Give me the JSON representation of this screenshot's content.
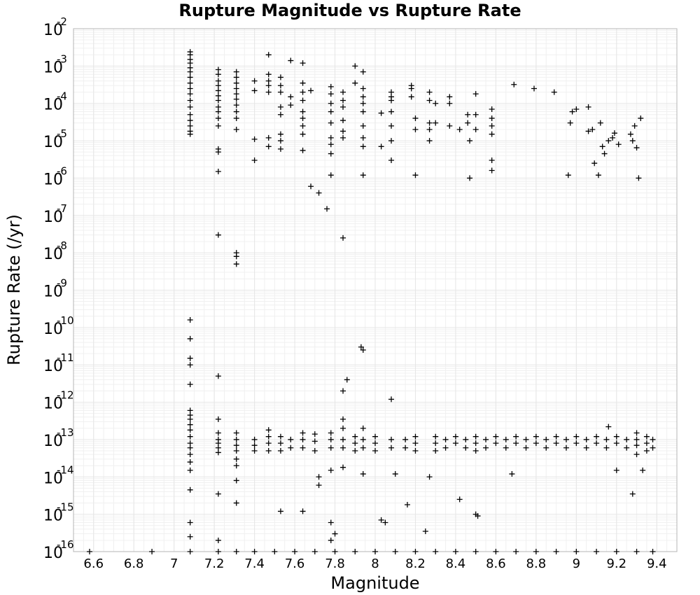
{
  "chart_data": {
    "type": "scatter",
    "title": "Rupture Magnitude vs Rupture Rate",
    "xlabel": "Magnitude",
    "ylabel": "Rupture Rate (/yr)",
    "xlim": [
      6.5,
      9.5
    ],
    "ylim": [
      1e-16,
      0.01
    ],
    "yscale": "log",
    "grid": true,
    "marker": "plus",
    "marker_color": "#000000",
    "x_ticks": [
      "6.6",
      "6.8",
      "7",
      "7.2",
      "7.4",
      "7.6",
      "7.8",
      "8",
      "8.2",
      "8.4",
      "8.6",
      "8.8",
      "9",
      "9.2",
      "9.4"
    ],
    "x_tick_values": [
      6.6,
      6.8,
      7.0,
      7.2,
      7.4,
      7.6,
      7.8,
      8.0,
      8.2,
      8.4,
      8.6,
      8.8,
      9.0,
      9.2,
      9.4
    ],
    "y_ticks": [
      {
        "base": "10",
        "exp": "-2"
      },
      {
        "base": "10",
        "exp": "-3"
      },
      {
        "base": "10",
        "exp": "-4"
      },
      {
        "base": "10",
        "exp": "-5"
      },
      {
        "base": "10",
        "exp": "-6"
      },
      {
        "base": "10",
        "exp": "-7"
      },
      {
        "base": "10",
        "exp": "-8"
      },
      {
        "base": "10",
        "exp": "-9"
      },
      {
        "base": "10",
        "exp": "-10"
      },
      {
        "base": "10",
        "exp": "-11"
      },
      {
        "base": "10",
        "exp": "-12"
      },
      {
        "base": "10",
        "exp": "-13"
      },
      {
        "base": "10",
        "exp": "-14"
      },
      {
        "base": "10",
        "exp": "-15"
      },
      {
        "base": "10",
        "exp": "-16"
      }
    ],
    "y_tick_values": [
      0.01,
      0.001,
      0.0001,
      1e-05,
      1e-06,
      1e-07,
      1e-08,
      1e-09,
      1e-10,
      1e-11,
      1e-12,
      1e-13,
      1e-14,
      1e-15,
      1e-16
    ],
    "points": [
      [
        6.58,
        1e-16
      ],
      [
        6.89,
        1e-16
      ],
      [
        7.08,
        1e-16
      ],
      [
        7.22,
        1e-16
      ],
      [
        7.31,
        1e-16
      ],
      [
        7.4,
        1e-16
      ],
      [
        7.5,
        1e-16
      ],
      [
        7.6,
        1e-16
      ],
      [
        7.7,
        1e-16
      ],
      [
        7.8,
        1e-16
      ],
      [
        7.9,
        1e-16
      ],
      [
        8.0,
        1e-16
      ],
      [
        8.1,
        1e-16
      ],
      [
        8.2,
        1e-16
      ],
      [
        8.3,
        1e-16
      ],
      [
        8.4,
        1e-16
      ],
      [
        8.5,
        1e-16
      ],
      [
        8.6,
        1e-16
      ],
      [
        8.7,
        1e-16
      ],
      [
        8.8,
        1e-16
      ],
      [
        8.9,
        1e-16
      ],
      [
        9.0,
        1e-16
      ],
      [
        9.1,
        1e-16
      ],
      [
        9.2,
        1e-16
      ],
      [
        9.3,
        1e-16
      ],
      [
        9.38,
        1e-16
      ],
      [
        7.08,
        0.0024
      ],
      [
        7.08,
        0.002
      ],
      [
        7.08,
        0.0015
      ],
      [
        7.08,
        0.0012
      ],
      [
        7.08,
        0.0009
      ],
      [
        7.08,
        0.0007
      ],
      [
        7.08,
        0.0005
      ],
      [
        7.08,
        0.00035
      ],
      [
        7.08,
        0.00025
      ],
      [
        7.08,
        0.00018
      ],
      [
        7.08,
        0.00012
      ],
      [
        7.08,
        8e-05
      ],
      [
        7.08,
        5e-05
      ],
      [
        7.08,
        3.5e-05
      ],
      [
        7.08,
        2.5e-05
      ],
      [
        7.08,
        1.8e-05
      ],
      [
        7.08,
        1.5e-05
      ],
      [
        7.22,
        0.0008
      ],
      [
        7.22,
        0.0006
      ],
      [
        7.22,
        0.0004
      ],
      [
        7.22,
        0.0003
      ],
      [
        7.22,
        0.00022
      ],
      [
        7.22,
        0.00016
      ],
      [
        7.22,
        0.00012
      ],
      [
        7.22,
        8e-05
      ],
      [
        7.22,
        6e-05
      ],
      [
        7.22,
        4e-05
      ],
      [
        7.22,
        2.5e-05
      ],
      [
        7.22,
        6e-06
      ],
      [
        7.22,
        5e-06
      ],
      [
        7.22,
        1.5e-06
      ],
      [
        7.22,
        3e-08
      ],
      [
        7.31,
        0.0007
      ],
      [
        7.31,
        0.0005
      ],
      [
        7.31,
        0.00035
      ],
      [
        7.31,
        0.00025
      ],
      [
        7.31,
        0.00018
      ],
      [
        7.31,
        0.00013
      ],
      [
        7.31,
        9e-05
      ],
      [
        7.31,
        6e-05
      ],
      [
        7.31,
        4e-05
      ],
      [
        7.31,
        2e-05
      ],
      [
        7.31,
        1e-08
      ],
      [
        7.31,
        8e-09
      ],
      [
        7.31,
        5e-09
      ],
      [
        7.4,
        0.0004
      ],
      [
        7.4,
        0.00022
      ],
      [
        7.4,
        1.1e-05
      ],
      [
        7.4,
        3e-06
      ],
      [
        7.47,
        0.002
      ],
      [
        7.47,
        0.0006
      ],
      [
        7.47,
        0.0004
      ],
      [
        7.47,
        0.0003
      ],
      [
        7.47,
        0.0002
      ],
      [
        7.47,
        1.2e-05
      ],
      [
        7.47,
        7e-06
      ],
      [
        7.53,
        0.0005
      ],
      [
        7.53,
        0.0003
      ],
      [
        7.53,
        0.0002
      ],
      [
        7.53,
        8e-05
      ],
      [
        7.53,
        5e-05
      ],
      [
        7.53,
        1.5e-05
      ],
      [
        7.53,
        1e-05
      ],
      [
        7.53,
        6e-06
      ],
      [
        7.58,
        0.0014
      ],
      [
        7.58,
        0.00015
      ],
      [
        7.58,
        9e-05
      ],
      [
        7.64,
        0.0012
      ],
      [
        7.64,
        0.00035
      ],
      [
        7.64,
        0.0002
      ],
      [
        7.64,
        0.00012
      ],
      [
        7.64,
        6e-05
      ],
      [
        7.64,
        4e-05
      ],
      [
        7.64,
        2.5e-05
      ],
      [
        7.64,
        1.5e-05
      ],
      [
        7.64,
        5.5e-06
      ],
      [
        7.68,
        0.00022
      ],
      [
        7.68,
        6e-07
      ],
      [
        7.72,
        4e-07
      ],
      [
        7.76,
        1.5e-07
      ],
      [
        7.78,
        0.00028
      ],
      [
        7.78,
        0.00018
      ],
      [
        7.78,
        0.0001
      ],
      [
        7.78,
        6e-05
      ],
      [
        7.78,
        3e-05
      ],
      [
        7.78,
        1.2e-05
      ],
      [
        7.78,
        8e-06
      ],
      [
        7.78,
        4.5e-06
      ],
      [
        7.78,
        1.2e-06
      ],
      [
        7.84,
        0.0002
      ],
      [
        7.84,
        0.00012
      ],
      [
        7.84,
        8e-05
      ],
      [
        7.84,
        3.5e-05
      ],
      [
        7.84,
        1.8e-05
      ],
      [
        7.84,
        1.2e-05
      ],
      [
        7.84,
        2.5e-08
      ],
      [
        7.9,
        0.001
      ],
      [
        7.9,
        0.00035
      ],
      [
        7.94,
        0.0007
      ],
      [
        7.94,
        0.00025
      ],
      [
        7.94,
        0.00015
      ],
      [
        7.94,
        0.0001
      ],
      [
        7.94,
        6e-05
      ],
      [
        7.94,
        2.5e-05
      ],
      [
        7.94,
        1.2e-05
      ],
      [
        7.94,
        7e-06
      ],
      [
        7.94,
        1.2e-06
      ],
      [
        8.03,
        5.5e-05
      ],
      [
        8.03,
        7e-06
      ],
      [
        8.08,
        0.0002
      ],
      [
        8.08,
        0.00015
      ],
      [
        8.08,
        0.00012
      ],
      [
        8.08,
        6e-05
      ],
      [
        8.08,
        2.5e-05
      ],
      [
        8.08,
        1e-05
      ],
      [
        8.08,
        3e-06
      ],
      [
        8.18,
        0.0003
      ],
      [
        8.18,
        0.00025
      ],
      [
        8.18,
        0.00015
      ],
      [
        8.2,
        4e-05
      ],
      [
        8.2,
        2e-05
      ],
      [
        8.2,
        1.2e-06
      ],
      [
        8.27,
        0.0002
      ],
      [
        8.27,
        0.00012
      ],
      [
        8.27,
        3e-05
      ],
      [
        8.27,
        2e-05
      ],
      [
        8.27,
        1e-05
      ],
      [
        8.3,
        0.0001
      ],
      [
        8.3,
        3e-05
      ],
      [
        8.37,
        0.00015
      ],
      [
        8.37,
        0.0001
      ],
      [
        8.37,
        2.5e-05
      ],
      [
        8.42,
        2e-05
      ],
      [
        8.46,
        5e-05
      ],
      [
        8.46,
        3e-05
      ],
      [
        8.47,
        1e-05
      ],
      [
        8.47,
        1e-06
      ],
      [
        8.5,
        0.00018
      ],
      [
        8.5,
        5e-05
      ],
      [
        8.5,
        2e-05
      ],
      [
        8.58,
        7e-05
      ],
      [
        8.58,
        4e-05
      ],
      [
        8.58,
        2.5e-05
      ],
      [
        8.58,
        1.5e-05
      ],
      [
        8.58,
        3e-06
      ],
      [
        8.58,
        1.6e-06
      ],
      [
        8.69,
        0.00032
      ],
      [
        8.79,
        0.00025
      ],
      [
        8.89,
        0.0002
      ],
      [
        8.96,
        1.2e-06
      ],
      [
        8.97,
        3e-05
      ],
      [
        8.98,
        6e-05
      ],
      [
        9.0,
        7e-05
      ],
      [
        9.06,
        8e-05
      ],
      [
        9.06,
        1.8e-05
      ],
      [
        9.08,
        2e-05
      ],
      [
        9.09,
        2.5e-06
      ],
      [
        9.11,
        1.2e-06
      ],
      [
        9.12,
        3e-05
      ],
      [
        9.13,
        7e-06
      ],
      [
        9.14,
        4.5e-06
      ],
      [
        9.16,
        1e-05
      ],
      [
        9.18,
        1.2e-05
      ],
      [
        9.19,
        1.6e-05
      ],
      [
        9.21,
        8e-06
      ],
      [
        9.27,
        1.5e-05
      ],
      [
        9.28,
        1e-05
      ],
      [
        9.29,
        2.5e-05
      ],
      [
        9.3,
        6.5e-06
      ],
      [
        9.31,
        1e-06
      ],
      [
        9.32,
        4e-05
      ],
      [
        7.08,
        1.6e-10
      ],
      [
        7.08,
        5e-11
      ],
      [
        7.08,
        1.5e-11
      ],
      [
        7.08,
        1e-11
      ],
      [
        7.08,
        3e-12
      ],
      [
        7.22,
        5e-12
      ],
      [
        7.22,
        3.5e-13
      ],
      [
        7.08,
        6e-13
      ],
      [
        7.08,
        4.5e-13
      ],
      [
        7.08,
        3.5e-13
      ],
      [
        7.08,
        2.5e-13
      ],
      [
        7.08,
        1.8e-13
      ],
      [
        7.08,
        1.2e-13
      ],
      [
        7.08,
        8e-14
      ],
      [
        7.08,
        6e-14
      ],
      [
        7.08,
        4e-14
      ],
      [
        7.08,
        2.5e-14
      ],
      [
        7.08,
        1.5e-14
      ],
      [
        7.08,
        4.5e-15
      ],
      [
        7.08,
        6e-16
      ],
      [
        7.08,
        2.5e-16
      ],
      [
        7.22,
        1.5e-13
      ],
      [
        7.22,
        1e-13
      ],
      [
        7.22,
        8e-14
      ],
      [
        7.22,
        6e-14
      ],
      [
        7.22,
        4.5e-14
      ],
      [
        7.22,
        3.5e-15
      ],
      [
        7.22,
        2e-16
      ],
      [
        7.31,
        1.5e-13
      ],
      [
        7.31,
        1e-13
      ],
      [
        7.31,
        7e-14
      ],
      [
        7.31,
        5e-14
      ],
      [
        7.31,
        3e-14
      ],
      [
        7.31,
        2e-14
      ],
      [
        7.31,
        8e-15
      ],
      [
        7.31,
        2e-15
      ],
      [
        7.4,
        1e-13
      ],
      [
        7.4,
        7e-14
      ],
      [
        7.4,
        5e-14
      ],
      [
        7.47,
        1.8e-13
      ],
      [
        7.47,
        1.2e-13
      ],
      [
        7.47,
        8e-14
      ],
      [
        7.47,
        5e-14
      ],
      [
        7.53,
        1.2e-13
      ],
      [
        7.53,
        8e-14
      ],
      [
        7.53,
        5e-14
      ],
      [
        7.53,
        1.2e-15
      ],
      [
        7.58,
        1e-13
      ],
      [
        7.58,
        6e-14
      ],
      [
        7.64,
        1.5e-13
      ],
      [
        7.64,
        1e-13
      ],
      [
        7.64,
        6e-14
      ],
      [
        7.64,
        1.2e-15
      ],
      [
        7.7,
        1.4e-13
      ],
      [
        7.7,
        9e-14
      ],
      [
        7.7,
        5e-14
      ],
      [
        7.72,
        1e-14
      ],
      [
        7.72,
        6e-15
      ],
      [
        7.78,
        1.5e-13
      ],
      [
        7.78,
        1e-13
      ],
      [
        7.78,
        6e-14
      ],
      [
        7.78,
        1.5e-14
      ],
      [
        7.78,
        6e-16
      ],
      [
        7.78,
        2e-16
      ],
      [
        7.8,
        3e-16
      ],
      [
        7.84,
        3.5e-13
      ],
      [
        7.84,
        2e-13
      ],
      [
        7.84,
        1e-13
      ],
      [
        7.84,
        6e-14
      ],
      [
        7.84,
        1.8e-14
      ],
      [
        7.84,
        2e-12
      ],
      [
        7.86,
        4e-12
      ],
      [
        7.9,
        1.2e-13
      ],
      [
        7.9,
        8e-14
      ],
      [
        7.9,
        5e-14
      ],
      [
        7.93,
        3e-11
      ],
      [
        7.94,
        2.5e-11
      ],
      [
        7.94,
        2e-13
      ],
      [
        7.94,
        1e-13
      ],
      [
        7.94,
        6e-14
      ],
      [
        7.94,
        1.2e-14
      ],
      [
        8.0,
        1.2e-13
      ],
      [
        8.0,
        8e-14
      ],
      [
        8.0,
        5e-14
      ],
      [
        8.03,
        7e-16
      ],
      [
        8.05,
        6e-16
      ],
      [
        8.08,
        1.2e-12
      ],
      [
        8.08,
        1e-13
      ],
      [
        8.08,
        6e-14
      ],
      [
        8.1,
        1.2e-14
      ],
      [
        8.15,
        1e-13
      ],
      [
        8.15,
        6e-14
      ],
      [
        8.16,
        1.8e-15
      ],
      [
        8.2,
        1.2e-13
      ],
      [
        8.2,
        8e-14
      ],
      [
        8.2,
        5e-14
      ],
      [
        8.25,
        3.5e-16
      ],
      [
        8.27,
        1e-14
      ],
      [
        8.3,
        1.2e-13
      ],
      [
        8.3,
        8e-14
      ],
      [
        8.3,
        5e-14
      ],
      [
        8.35,
        1e-13
      ],
      [
        8.35,
        6e-14
      ],
      [
        8.4,
        1.2e-13
      ],
      [
        8.4,
        8e-14
      ],
      [
        8.42,
        2.5e-15
      ],
      [
        8.45,
        1e-13
      ],
      [
        8.45,
        6e-14
      ],
      [
        8.5,
        1.2e-13
      ],
      [
        8.5,
        8e-14
      ],
      [
        8.5,
        5e-14
      ],
      [
        8.5,
        1e-15
      ],
      [
        8.51,
        9e-16
      ],
      [
        8.55,
        1e-13
      ],
      [
        8.55,
        6e-14
      ],
      [
        8.6,
        1.2e-13
      ],
      [
        8.6,
        8e-14
      ],
      [
        8.65,
        1e-13
      ],
      [
        8.65,
        6e-14
      ],
      [
        8.68,
        1.2e-14
      ],
      [
        8.7,
        1.2e-13
      ],
      [
        8.7,
        8e-14
      ],
      [
        8.75,
        1e-13
      ],
      [
        8.75,
        6e-14
      ],
      [
        8.8,
        1.2e-13
      ],
      [
        8.8,
        8e-14
      ],
      [
        8.85,
        1e-13
      ],
      [
        8.85,
        6e-14
      ],
      [
        8.9,
        1.2e-13
      ],
      [
        8.9,
        8e-14
      ],
      [
        8.95,
        1e-13
      ],
      [
        8.95,
        6e-14
      ],
      [
        9.0,
        1.2e-13
      ],
      [
        9.0,
        8e-14
      ],
      [
        9.05,
        1e-13
      ],
      [
        9.05,
        6e-14
      ],
      [
        9.1,
        1.2e-13
      ],
      [
        9.1,
        8e-14
      ],
      [
        9.15,
        1e-13
      ],
      [
        9.15,
        6e-14
      ],
      [
        9.16,
        2.2e-13
      ],
      [
        9.2,
        1.2e-13
      ],
      [
        9.2,
        8e-14
      ],
      [
        9.2,
        1.5e-14
      ],
      [
        9.25,
        1e-13
      ],
      [
        9.25,
        6e-14
      ],
      [
        9.28,
        3.5e-15
      ],
      [
        9.3,
        1.5e-13
      ],
      [
        9.3,
        1e-13
      ],
      [
        9.3,
        7e-14
      ],
      [
        9.3,
        4e-14
      ],
      [
        9.35,
        1.2e-13
      ],
      [
        9.35,
        8e-14
      ],
      [
        9.35,
        5e-14
      ],
      [
        9.38,
        1e-13
      ],
      [
        9.38,
        6e-14
      ],
      [
        9.33,
        1.5e-14
      ]
    ]
  }
}
